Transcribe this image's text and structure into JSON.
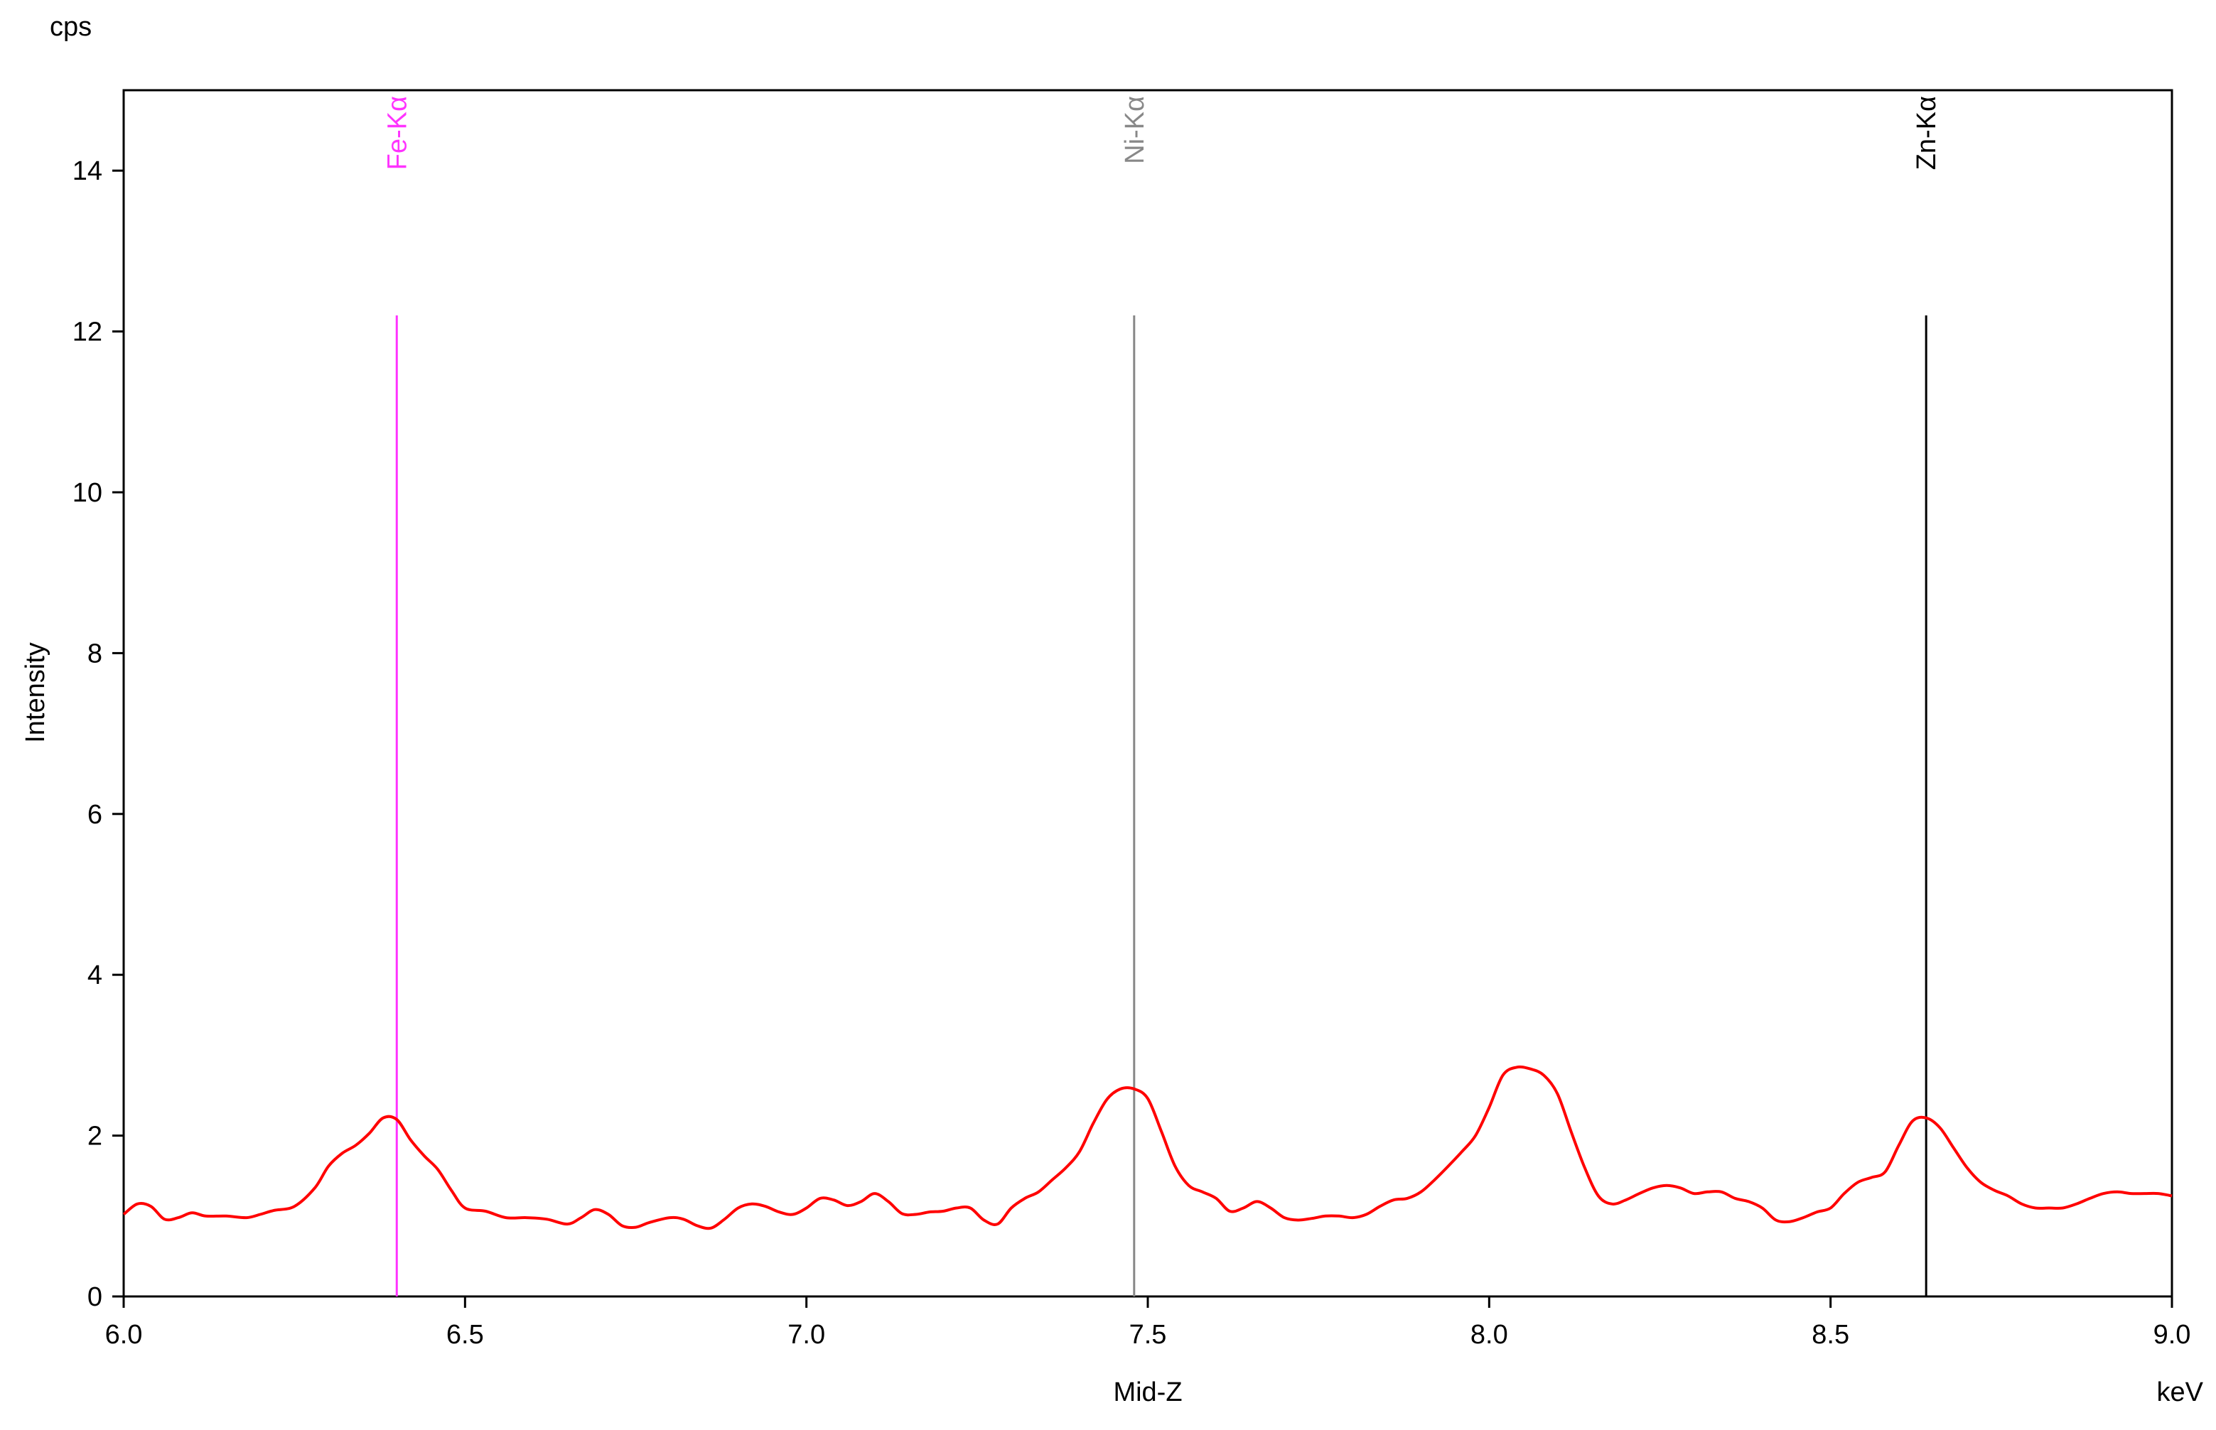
{
  "chart_data": {
    "type": "line",
    "unit_top": "cps",
    "unit_right": "keV",
    "xlabel": "Mid-Z",
    "ylabel": "Intensity",
    "xlim": [
      6.0,
      9.0
    ],
    "ylim": [
      0,
      15
    ],
    "x_ticks": [
      6.0,
      6.5,
      7.0,
      7.5,
      8.0,
      8.5,
      9.0
    ],
    "x_tick_labels": [
      "6.0",
      "6.5",
      "7.0",
      "7.5",
      "8.0",
      "8.5",
      "9.0"
    ],
    "y_ticks": [
      0,
      2,
      4,
      6,
      8,
      10,
      12,
      14
    ],
    "y_tick_labels": [
      "0",
      "2",
      "4",
      "6",
      "8",
      "10",
      "12",
      "14"
    ],
    "grid": false,
    "line_color": "#ff0000",
    "series": [
      {
        "x": [
          6.0,
          6.02,
          6.04,
          6.06,
          6.08,
          6.1,
          6.12,
          6.15,
          6.18,
          6.2,
          6.22,
          6.25,
          6.28,
          6.3,
          6.32,
          6.34,
          6.36,
          6.38,
          6.4,
          6.42,
          6.44,
          6.46,
          6.48,
          6.5,
          6.53,
          6.56,
          6.59,
          6.62,
          6.65,
          6.67,
          6.69,
          6.71,
          6.73,
          6.75,
          6.77,
          6.8,
          6.82,
          6.84,
          6.86,
          6.88,
          6.9,
          6.92,
          6.94,
          6.96,
          6.98,
          7.0,
          7.02,
          7.04,
          7.06,
          7.08,
          7.1,
          7.12,
          7.14,
          7.16,
          7.18,
          7.2,
          7.22,
          7.24,
          7.26,
          7.28,
          7.3,
          7.32,
          7.34,
          7.36,
          7.38,
          7.4,
          7.42,
          7.44,
          7.46,
          7.48,
          7.5,
          7.52,
          7.54,
          7.56,
          7.58,
          7.6,
          7.62,
          7.64,
          7.66,
          7.68,
          7.7,
          7.72,
          7.74,
          7.76,
          7.78,
          7.8,
          7.82,
          7.84,
          7.86,
          7.88,
          7.9,
          7.92,
          7.94,
          7.96,
          7.98,
          8.0,
          8.02,
          8.04,
          8.06,
          8.08,
          8.1,
          8.12,
          8.14,
          8.16,
          8.18,
          8.2,
          8.22,
          8.24,
          8.26,
          8.28,
          8.3,
          8.32,
          8.34,
          8.36,
          8.38,
          8.4,
          8.42,
          8.44,
          8.46,
          8.48,
          8.5,
          8.52,
          8.54,
          8.56,
          8.58,
          8.6,
          8.62,
          8.64,
          8.66,
          8.68,
          8.7,
          8.72,
          8.74,
          8.76,
          8.78,
          8.8,
          8.82,
          8.84,
          8.86,
          8.88,
          8.9,
          8.92,
          8.94,
          8.96,
          8.98,
          9.0
        ],
        "y": [
          1.02,
          1.15,
          1.12,
          0.96,
          0.98,
          1.04,
          1.0,
          1.0,
          0.98,
          1.02,
          1.07,
          1.12,
          1.35,
          1.62,
          1.78,
          1.88,
          2.03,
          2.22,
          2.2,
          1.95,
          1.75,
          1.58,
          1.32,
          1.1,
          1.06,
          0.98,
          0.98,
          0.96,
          0.9,
          0.98,
          1.08,
          1.02,
          0.88,
          0.86,
          0.92,
          0.98,
          0.96,
          0.88,
          0.85,
          0.96,
          1.1,
          1.15,
          1.12,
          1.05,
          1.02,
          1.1,
          1.22,
          1.2,
          1.13,
          1.18,
          1.28,
          1.18,
          1.03,
          1.02,
          1.05,
          1.06,
          1.1,
          1.1,
          0.95,
          0.9,
          1.1,
          1.22,
          1.3,
          1.45,
          1.6,
          1.8,
          2.15,
          2.45,
          2.58,
          2.58,
          2.46,
          2.05,
          1.62,
          1.38,
          1.3,
          1.22,
          1.06,
          1.1,
          1.18,
          1.1,
          0.98,
          0.95,
          0.97,
          1.0,
          1.0,
          0.98,
          1.02,
          1.12,
          1.2,
          1.22,
          1.3,
          1.45,
          1.62,
          1.8,
          2.0,
          2.35,
          2.75,
          2.85,
          2.83,
          2.75,
          2.52,
          2.05,
          1.6,
          1.25,
          1.15,
          1.2,
          1.28,
          1.35,
          1.38,
          1.35,
          1.28,
          1.3,
          1.3,
          1.22,
          1.18,
          1.1,
          0.95,
          0.93,
          0.98,
          1.05,
          1.1,
          1.28,
          1.42,
          1.48,
          1.55,
          1.88,
          2.18,
          2.22,
          2.1,
          1.85,
          1.6,
          1.42,
          1.32,
          1.25,
          1.15,
          1.1,
          1.1,
          1.1,
          1.15,
          1.22,
          1.28,
          1.3,
          1.28,
          1.28,
          1.28,
          1.25
        ]
      }
    ],
    "markers": [
      {
        "label": "Fe-Kα",
        "x": 6.4,
        "y_top": 12.2,
        "color": "#ff33ff"
      },
      {
        "label": "Ni-Kα",
        "x": 7.48,
        "y_top": 12.2,
        "color": "#888888"
      },
      {
        "label": "Zn-Kα",
        "x": 8.64,
        "y_top": 12.2,
        "color": "#000000"
      }
    ]
  }
}
